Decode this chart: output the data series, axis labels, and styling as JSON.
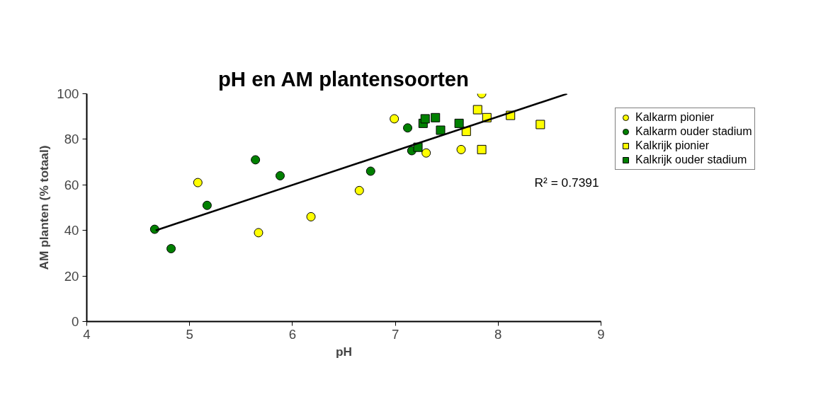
{
  "chart_data": {
    "type": "scatter",
    "title": "pH en AM plantensoorten",
    "xlabel": "pH",
    "ylabel": "AM planten (% totaal)",
    "xlim": [
      4,
      9
    ],
    "xticks": [
      4,
      5,
      6,
      7,
      8,
      9
    ],
    "ylim": [
      0,
      100
    ],
    "yticks": [
      0,
      20,
      40,
      60,
      80,
      100
    ],
    "grid": false,
    "legend": "top right",
    "annotations": [
      "R² = 0.7391"
    ],
    "series": [
      {
        "name": "Kalkarm pionier",
        "color": "#ffff00",
        "marker": "circle",
        "x": [
          5.08,
          5.67,
          6.18,
          6.65,
          6.99,
          7.3,
          7.64,
          7.84
        ],
        "values": [
          61,
          39,
          46,
          57.5,
          89,
          74,
          75.5,
          100
        ]
      },
      {
        "name": "Kalkarm ouder stadium",
        "color": "#008000",
        "marker": "circle",
        "x": [
          4.66,
          4.82,
          5.17,
          5.64,
          5.88,
          6.76,
          7.12,
          7.16
        ],
        "values": [
          40.5,
          32,
          51,
          71,
          64,
          66,
          85,
          75
        ]
      },
      {
        "name": "Kalkrijk pionier",
        "color": "#ffff00",
        "marker": "square",
        "x": [
          7.69,
          7.8,
          7.84,
          7.89,
          8.12,
          8.41
        ],
        "values": [
          83.5,
          93,
          75.5,
          89.5,
          90.5,
          86.5
        ]
      },
      {
        "name": "Kalkrijk ouder stadium",
        "color": "#008000",
        "marker": "square",
        "x": [
          7.22,
          7.27,
          7.29,
          7.39,
          7.44,
          7.62
        ],
        "values": [
          76.5,
          87,
          89,
          89.5,
          84,
          87
        ]
      },
      {
        "type": "line",
        "color": "#000000",
        "marker": "none",
        "x": [
          4.67,
          8.67
        ],
        "values": [
          40,
          100
        ]
      }
    ]
  }
}
